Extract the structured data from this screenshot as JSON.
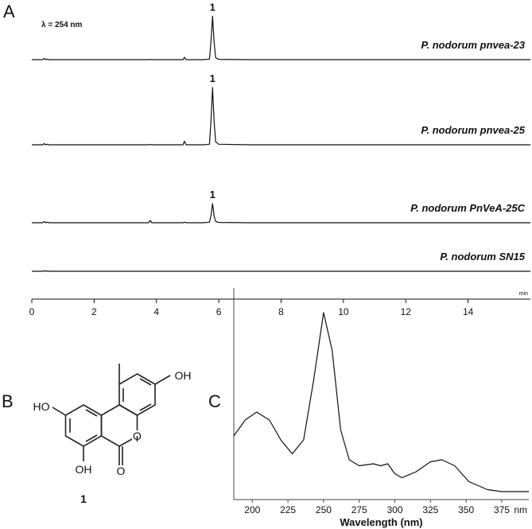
{
  "panel_labels": [
    "A",
    "B",
    "C"
  ],
  "structure": {
    "labels": [
      "OH",
      "HO",
      "O",
      "O",
      "OH"
    ],
    "compound": "1"
  },
  "chart_data": [
    {
      "type": "line",
      "annotation": "λ = 254 nm",
      "xunit": "min",
      "xlim": [
        0,
        16
      ],
      "xticks": [
        0,
        2,
        4,
        6,
        8,
        10,
        12,
        14
      ],
      "ylim": [
        0,
        100
      ],
      "x": [
        0,
        0.35,
        0.4,
        0.45,
        0.5,
        0.55,
        1.0,
        2.0,
        3.0,
        3.75,
        3.8,
        3.85,
        4.5,
        4.85,
        4.9,
        4.95,
        5.5,
        5.7,
        5.75,
        5.8,
        5.85,
        5.9,
        6.0,
        7.0,
        10.0,
        14.0,
        16.0
      ],
      "series": [
        {
          "name": "P. nodorum pnvea-23",
          "color": "#111111",
          "peak_label": "1",
          "values": [
            0,
            0,
            2,
            0,
            1,
            0,
            0,
            0,
            0,
            0,
            0.5,
            0,
            0,
            0,
            4,
            0,
            0,
            1,
            30,
            73,
            30,
            3,
            0.5,
            0,
            0,
            0,
            0
          ]
        },
        {
          "name": "P. nodorum pnvea-25",
          "color": "#111111",
          "peak_label": "1",
          "values": [
            0,
            0,
            2,
            0,
            1,
            0,
            0,
            0,
            0,
            0,
            0.5,
            0,
            0,
            0,
            6,
            0,
            0,
            1,
            40,
            96,
            40,
            5,
            1,
            0,
            0,
            0,
            0
          ]
        },
        {
          "name": "P. nodorum PnVeA-25C",
          "color": "#111111",
          "peak_label": "1",
          "values": [
            0,
            0,
            2,
            0,
            1,
            0,
            0,
            0,
            0,
            0,
            4,
            0,
            0,
            0,
            1,
            0,
            0,
            1,
            12,
            32,
            12,
            2,
            0.5,
            0,
            0,
            0,
            0
          ]
        },
        {
          "name": "P. nodorum SN15",
          "color": "#111111",
          "values": [
            0,
            0,
            1,
            0,
            0.5,
            0,
            0,
            0,
            0,
            0,
            0,
            0,
            0,
            0,
            0,
            0,
            0,
            0,
            0,
            0,
            0,
            0,
            0,
            0,
            0,
            0,
            0
          ]
        }
      ]
    },
    {
      "type": "line",
      "xlabel": "Wavelength (nm)",
      "xunit": "nm",
      "xlim": [
        187,
        394
      ],
      "xticks": [
        200,
        225,
        250,
        275,
        300,
        325,
        350,
        375
      ],
      "ylim": [
        0,
        100
      ],
      "x": [
        187,
        195,
        203,
        212,
        220,
        228,
        236,
        243,
        250,
        256,
        262,
        268,
        275,
        285,
        290,
        295,
        300,
        305,
        315,
        325,
        333,
        342,
        352,
        365,
        375,
        394
      ],
      "series": [
        {
          "color": "#111111",
          "values": [
            32,
            40,
            44,
            40,
            30,
            23,
            30,
            60,
            94,
            75,
            35,
            20,
            17,
            18,
            17,
            18,
            13,
            11,
            14,
            19,
            20,
            17,
            9,
            5,
            4,
            4
          ]
        }
      ]
    }
  ]
}
